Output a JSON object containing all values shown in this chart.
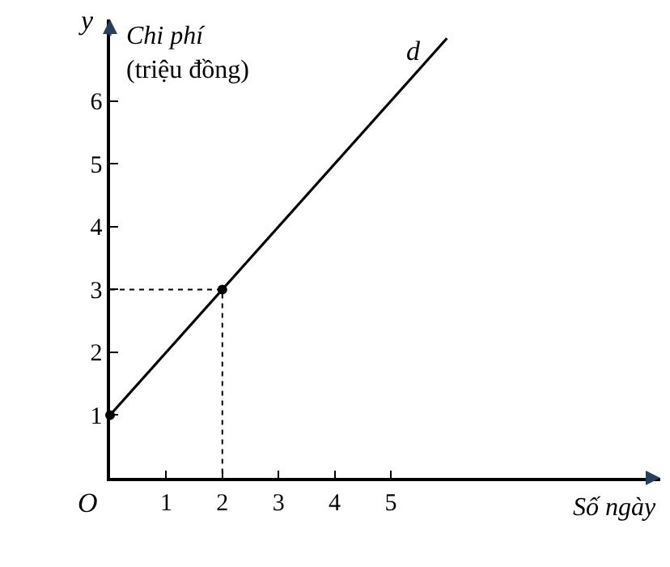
{
  "chart_data": {
    "type": "line",
    "xlabel": "Số ngày",
    "ylabel": "Chi phí\n(triệu đồng)",
    "xlim": [
      0,
      9.8
    ],
    "ylim": [
      0,
      7.3
    ],
    "xticks": [
      1,
      2,
      3,
      4,
      5
    ],
    "yticks": [
      1,
      2,
      3,
      4,
      5,
      6
    ],
    "series": [
      {
        "x": [
          0,
          6
        ],
        "values": [
          1,
          7
        ],
        "color": "#000000",
        "marker": "none",
        "line_style": "solid"
      },
      {
        "type": "line",
        "x": [
          0,
          2,
          2
        ],
        "values": [
          3,
          3,
          0
        ],
        "color": "#000000",
        "marker": "none",
        "line_style": "dotted"
      },
      {
        "type": "scatter",
        "x": [
          0,
          2
        ],
        "values": [
          1,
          3
        ],
        "color": "#000000",
        "marker": "circle"
      }
    ],
    "annotations": [
      "y",
      "O",
      "d"
    ]
  }
}
